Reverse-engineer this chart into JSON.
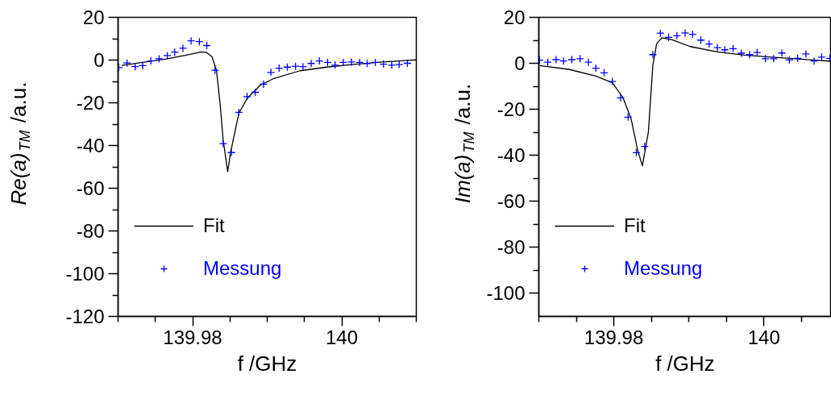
{
  "chart_data": [
    {
      "type": "line",
      "xlabel": "f /GHz",
      "ylabel": "Re(a)$_{TM}$ /a.u.",
      "xlim": [
        139.97,
        140.01
      ],
      "ylim": [
        -120,
        20
      ],
      "xticks": [
        {
          "value": 139.97,
          "label": null
        },
        {
          "value": 139.975,
          "label": null
        },
        139.98,
        {
          "value": 139.985,
          "label": null
        },
        {
          "value": 139.99,
          "label": null
        },
        {
          "value": 139.995,
          "label": null
        },
        140,
        {
          "value": 140.005,
          "label": null
        },
        {
          "value": 140.01,
          "label": null
        }
      ],
      "yticks": [
        20,
        {
          "value": 10,
          "label": null
        },
        0,
        {
          "value": -10,
          "label": null
        },
        -20,
        {
          "value": -30,
          "label": null
        },
        -40,
        {
          "value": -50,
          "label": null
        },
        -60,
        {
          "value": -70,
          "label": null
        },
        -80,
        {
          "value": -90,
          "label": null
        },
        -100,
        {
          "value": -110,
          "label": null
        },
        -120
      ],
      "grid": false,
      "legend": "bottom left",
      "series": [
        {
          "name": "Fit",
          "color": "#000000",
          "line_style": "solid",
          "x": [
            139.9705,
            139.9729,
            139.9765,
            139.9794,
            139.9812,
            139.9819,
            139.9826,
            139.9832,
            139.9837,
            139.9841,
            139.9847,
            139.9851,
            139.9862,
            139.9873,
            139.9891,
            139.9909,
            139.9944,
            139.998,
            140.0016,
            140.0052,
            140.01
          ],
          "values": [
            -2.5,
            -1.3,
            0.5,
            2.5,
            3.8,
            3.5,
            1.5,
            -4.8,
            -21.1,
            -37.5,
            -52.2,
            -43.1,
            -24.9,
            -18.0,
            -11.7,
            -8.6,
            -5.0,
            -3.3,
            -2.0,
            -1.0,
            0.1
          ]
        },
        {
          "name": "Messung",
          "type": "scatter",
          "marker": "cross",
          "color": "#0000ff",
          "x": [
            139.9701,
            139.9712,
            139.9723,
            139.9733,
            139.9744,
            139.9755,
            139.9766,
            139.9776,
            139.9787,
            139.9798,
            139.9809,
            139.9819,
            139.983,
            139.9841,
            139.9852,
            139.9862,
            139.9873,
            139.9884,
            139.9895,
            139.9905,
            139.9916,
            139.9927,
            139.9938,
            139.9948,
            139.9959,
            139.997,
            139.9981,
            139.9991,
            140.0002,
            140.0013,
            140.0024,
            140.0034,
            140.0045,
            140.0056,
            140.0067,
            140.0077,
            140.0088
          ],
          "values": [
            -3.5,
            -1.4,
            -3.1,
            -2.6,
            -0.4,
            0.6,
            2.1,
            3.7,
            5.5,
            9.0,
            8.6,
            6.8,
            -4.8,
            -39.1,
            -43.3,
            -24.5,
            -17.1,
            -15.1,
            -11.3,
            -5.8,
            -3.8,
            -3.3,
            -2.9,
            -3.1,
            -1.6,
            -0.4,
            -1.1,
            -2.4,
            -1.1,
            -0.9,
            -1.1,
            -1.6,
            -1.1,
            -1.9,
            -2.4,
            -2.1,
            -1.5
          ]
        }
      ]
    },
    {
      "type": "line",
      "xlabel": "f /GHz",
      "ylabel": "Im(a)$_{TM}$ /a.u.",
      "xlim": [
        139.97,
        140.009
      ],
      "ylim": [
        -110,
        20
      ],
      "xticks": [
        {
          "value": 139.97,
          "label": null
        },
        {
          "value": 139.975,
          "label": null
        },
        139.98,
        {
          "value": 139.985,
          "label": null
        },
        {
          "value": 139.99,
          "label": null
        },
        {
          "value": 139.995,
          "label": null
        },
        140,
        {
          "value": 140.005,
          "label": null
        }
      ],
      "yticks": [
        20,
        {
          "value": 10,
          "label": null
        },
        0,
        {
          "value": -10,
          "label": null
        },
        -20,
        {
          "value": -30,
          "label": null
        },
        -40,
        {
          "value": -50,
          "label": null
        },
        -60,
        {
          "value": -70,
          "label": null
        },
        -80,
        {
          "value": -90,
          "label": null
        },
        -100
      ],
      "grid": false,
      "legend": "bottom left",
      "series": [
        {
          "name": "Fit",
          "color": "#000000",
          "line_style": "solid",
          "x": [
            139.9701,
            139.974,
            139.9776,
            139.9798,
            139.9812,
            139.9823,
            139.9832,
            139.9838,
            139.9846,
            139.9852,
            139.9857,
            139.9864,
            139.9877,
            139.9902,
            139.9938,
            139.9974,
            140.001,
            140.0046,
            140.009
          ],
          "values": [
            -1.0,
            -2.6,
            -5.5,
            -8.4,
            -14.8,
            -24.1,
            -38.1,
            -44.5,
            -29.9,
            -0.8,
            8.5,
            11.1,
            10.3,
            7.3,
            5.0,
            3.6,
            2.7,
            1.9,
            0.9
          ]
        },
        {
          "name": "Messung",
          "type": "scatter",
          "marker": "cross",
          "color": "#0000ff",
          "x": [
            139.9701,
            139.9712,
            139.9723,
            139.9733,
            139.9744,
            139.9755,
            139.9766,
            139.9776,
            139.9787,
            139.9798,
            139.9809,
            139.9819,
            139.983,
            139.9841,
            139.9852,
            139.9862,
            139.9873,
            139.9884,
            139.9895,
            139.9905,
            139.9916,
            139.9927,
            139.9938,
            139.9948,
            139.9959,
            139.997,
            139.9981,
            139.9991,
            140.0002,
            140.0013,
            140.0024,
            140.0034,
            140.0045,
            140.0056,
            140.0067,
            140.0077,
            140.0088
          ],
          "values": [
            1.4,
            0.5,
            1.6,
            1.0,
            1.6,
            2.0,
            0.5,
            -2.1,
            -4.1,
            -7.9,
            -15.0,
            -23.4,
            -38.8,
            -36.1,
            3.8,
            13.1,
            11.3,
            12.0,
            13.2,
            12.6,
            10.1,
            8.4,
            6.8,
            5.9,
            6.4,
            4.4,
            3.8,
            4.7,
            2.0,
            2.0,
            4.5,
            1.5,
            2.2,
            4.1,
            1.0,
            2.7,
            2.2
          ]
        }
      ]
    }
  ]
}
